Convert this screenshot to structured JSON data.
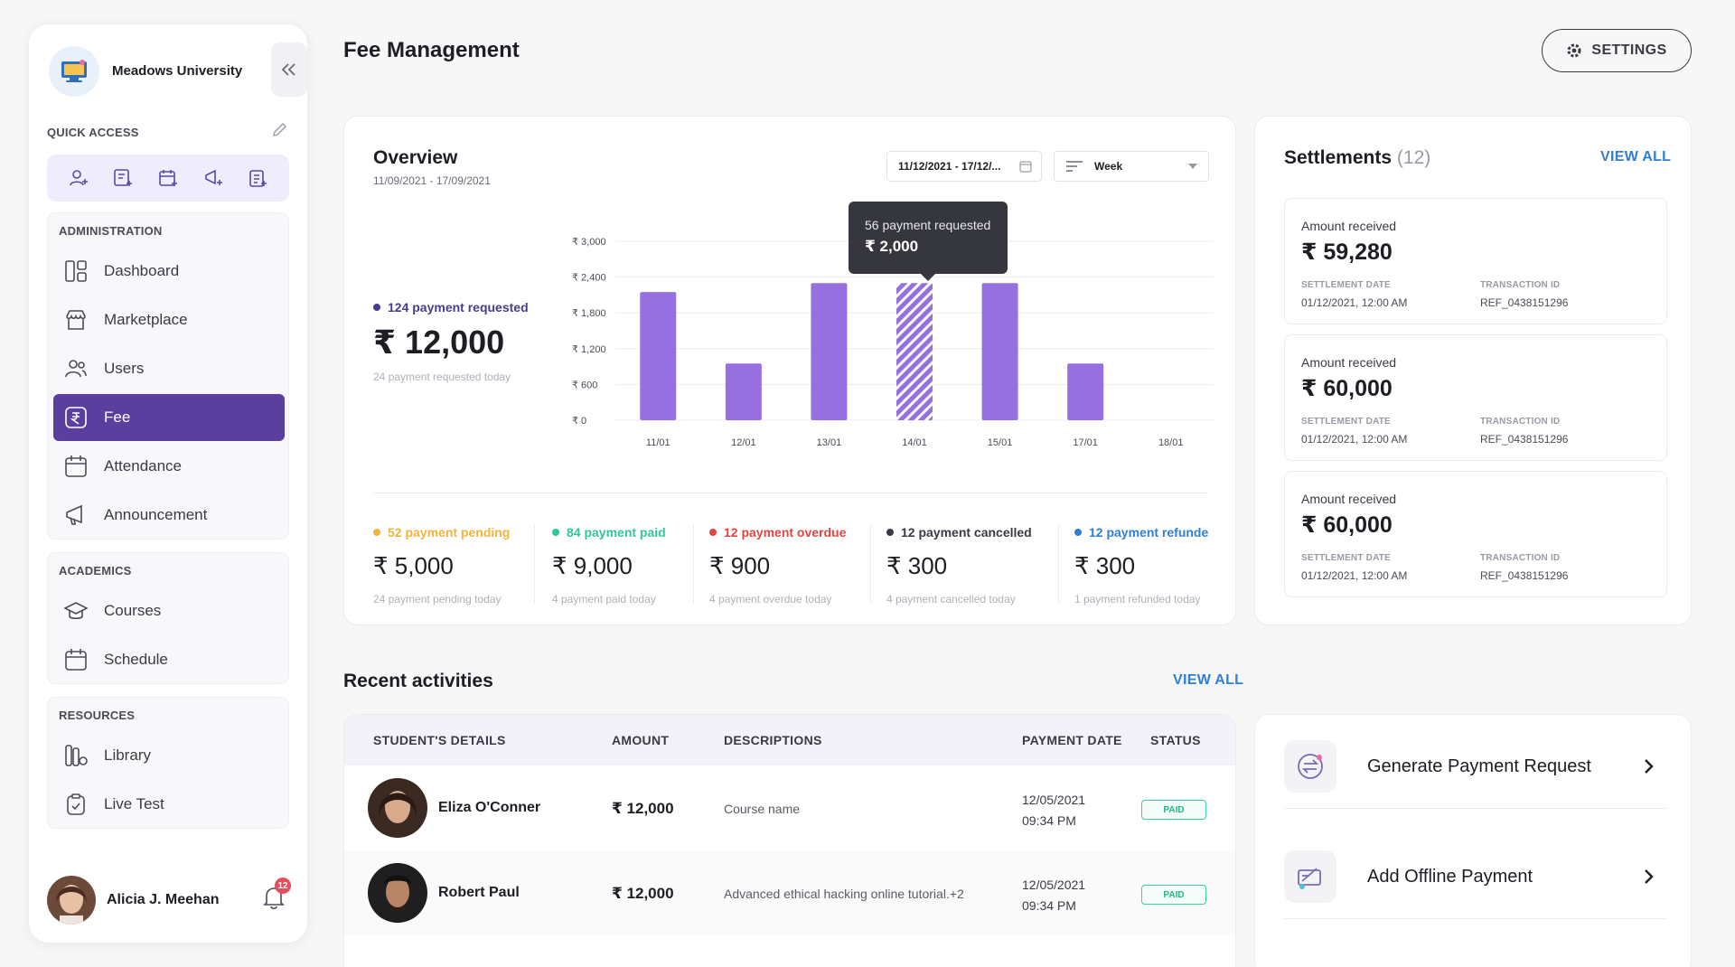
{
  "sidebar": {
    "brand": "Meadows University",
    "quick_access_label": "QUICK ACCESS",
    "sections": [
      {
        "title": "ADMINISTRATION",
        "items": [
          {
            "label": "Dashboard",
            "icon": "dashboard-icon"
          },
          {
            "label": "Marketplace",
            "icon": "store-icon"
          },
          {
            "label": "Users",
            "icon": "users-icon"
          },
          {
            "label": "Fee",
            "icon": "rupee-icon",
            "active": true
          },
          {
            "label": "Attendance",
            "icon": "calendar-icon"
          },
          {
            "label": "Announcement",
            "icon": "megaphone-icon"
          }
        ]
      },
      {
        "title": "ACADEMICS",
        "items": [
          {
            "label": "Courses",
            "icon": "graduation-cap-icon"
          },
          {
            "label": "Schedule",
            "icon": "calendar-icon"
          }
        ]
      },
      {
        "title": "RESOURCES",
        "items": [
          {
            "label": "Library",
            "icon": "library-icon"
          },
          {
            "label": "Live Test",
            "icon": "clipboard-check-icon"
          }
        ]
      }
    ],
    "user": {
      "name": "Alicia J. Meehan",
      "notifications": "12"
    }
  },
  "header": {
    "title": "Fee Management",
    "settings_label": "SETTINGS"
  },
  "overview": {
    "title": "Overview",
    "range": "11/09/2021 - 17/09/2021",
    "date_filter": "11/12/2021 - 17/12/...",
    "period_filter": "Week",
    "requested_label": "124 payment requested",
    "requested_amount": "₹ 12,000",
    "requested_sub": "24 payment requested today",
    "tooltip_label": "56 payment requested",
    "tooltip_value": "₹ 2,000",
    "stats": [
      {
        "label": "52 payment pending",
        "value": "₹ 5,000",
        "sub": "24 payment pending today",
        "color": "#f0b43c"
      },
      {
        "label": "84 payment paid",
        "value": "₹ 9,000",
        "sub": "4 payment paid today",
        "color": "#2fc79a"
      },
      {
        "label": "12 payment overdue",
        "value": "₹ 900",
        "sub": "4 payment overdue today",
        "color": "#e2443f"
      },
      {
        "label": "12 payment cancelled",
        "value": "₹ 300",
        "sub": "4 payment cancelled today",
        "color": "#3a3a46"
      },
      {
        "label": "12 payment refunde",
        "value": "₹ 300",
        "sub": "1 payment refunded today",
        "color": "#2f7fd4"
      }
    ]
  },
  "chart_data": {
    "type": "bar",
    "categories": [
      "11/01",
      "12/01",
      "13/01",
      "14/01",
      "15/01",
      "17/01",
      "18/01"
    ],
    "values": [
      2150,
      950,
      2300,
      2300,
      2300,
      950,
      0
    ],
    "highlight_index": 3,
    "yticks": [
      "₹ 3,000",
      "₹ 2,400",
      "₹ 1,800",
      "₹ 1,200",
      "₹ 600",
      "₹ 0"
    ],
    "ylim": [
      0,
      3000
    ],
    "bar_color": "#9670e0"
  },
  "settlements": {
    "title": "Settlements",
    "count": "(12)",
    "view_all": "VIEW ALL",
    "date_key": "SETTLEMENT DATE",
    "txn_key": "TRANSACTION ID",
    "items": [
      {
        "label": "Amount received",
        "amount": "₹ 59,280",
        "date": "01/12/2021, 12:00 AM",
        "txn": "REF_0438151296"
      },
      {
        "label": "Amount received",
        "amount": "₹ 60,000",
        "date": "01/12/2021, 12:00 AM",
        "txn": "REF_0438151296"
      },
      {
        "label": "Amount received",
        "amount": "₹ 60,000",
        "date": "01/12/2021, 12:00 AM",
        "txn": "REF_0438151296"
      }
    ]
  },
  "recent": {
    "title": "Recent activities",
    "view_all": "VIEW ALL",
    "columns": [
      "STUDENT'S DETAILS",
      "AMOUNT",
      "DESCRIPTIONS",
      "PAYMENT DATE",
      "STATUS"
    ],
    "rows": [
      {
        "name": "Eliza O'Conner",
        "amount": "₹ 12,000",
        "desc": "Course name",
        "date": "12/05/2021",
        "time": "09:34 PM",
        "status": "PAID"
      },
      {
        "name": "Robert Paul",
        "amount": "₹ 12,000",
        "desc": "Advanced ethical hacking online tutorial.+2",
        "date": "12/05/2021",
        "time": "09:34 PM",
        "status": "PAID"
      }
    ]
  },
  "actions": [
    {
      "label": "Generate Payment Request",
      "icon": "payment-request-icon"
    },
    {
      "label": "Add Offline Payment",
      "icon": "offline-payment-icon"
    }
  ]
}
